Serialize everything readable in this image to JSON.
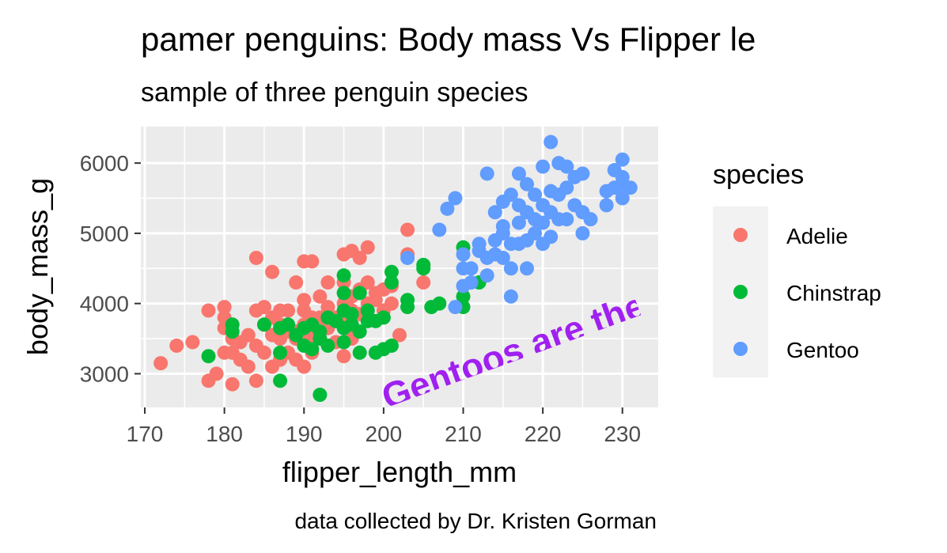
{
  "chart_data": {
    "type": "scatter",
    "title": "pamer penguins: Body mass Vs Flipper le",
    "subtitle": "sample of three penguin species",
    "xlabel": "flipper_length_mm",
    "ylabel": "body_mass_g",
    "caption": "data collected by Dr. Kristen Gorman",
    "annotation": "Gentoos are the",
    "xlim": [
      169.5,
      234.5
    ],
    "ylim": [
      2520,
      6520
    ],
    "x_ticks": [
      170,
      180,
      190,
      200,
      210,
      220,
      230
    ],
    "y_ticks": [
      3000,
      4000,
      5000,
      6000
    ],
    "legend_title": "species",
    "legend_position": "right",
    "grid": true,
    "series": [
      {
        "name": "Adelie",
        "color": "#F8766D",
        "points": [
          [
            172,
            3150
          ],
          [
            174,
            3400
          ],
          [
            176,
            3450
          ],
          [
            178,
            3900
          ],
          [
            178,
            2900
          ],
          [
            179,
            3000
          ],
          [
            180,
            3950
          ],
          [
            180,
            3800
          ],
          [
            180,
            3650
          ],
          [
            180,
            3300
          ],
          [
            181,
            2850
          ],
          [
            181,
            3500
          ],
          [
            181,
            3300
          ],
          [
            182,
            3200
          ],
          [
            182,
            3450
          ],
          [
            183,
            3550
          ],
          [
            183,
            3100
          ],
          [
            184,
            3900
          ],
          [
            184,
            4650
          ],
          [
            184,
            3400
          ],
          [
            184,
            2900
          ],
          [
            185,
            3950
          ],
          [
            185,
            3700
          ],
          [
            185,
            3300
          ],
          [
            186,
            3800
          ],
          [
            186,
            3550
          ],
          [
            186,
            4450
          ],
          [
            186,
            3100
          ],
          [
            187,
            3700
          ],
          [
            187,
            3900
          ],
          [
            187,
            3500
          ],
          [
            187,
            3200
          ],
          [
            188,
            3300
          ],
          [
            188,
            3600
          ],
          [
            188,
            3900
          ],
          [
            189,
            3500
          ],
          [
            189,
            4300
          ],
          [
            189,
            3200
          ],
          [
            189,
            3600
          ],
          [
            190,
            4600
          ],
          [
            190,
            4050
          ],
          [
            190,
            3450
          ],
          [
            190,
            3900
          ],
          [
            190,
            3700
          ],
          [
            190,
            3100
          ],
          [
            191,
            4600
          ],
          [
            191,
            3800
          ],
          [
            191,
            3550
          ],
          [
            191,
            3300
          ],
          [
            192,
            4100
          ],
          [
            192,
            3800
          ],
          [
            192,
            3500
          ],
          [
            193,
            4300
          ],
          [
            193,
            3950
          ],
          [
            193,
            3650
          ],
          [
            194,
            3800
          ],
          [
            194,
            3450
          ],
          [
            195,
            3250
          ],
          [
            195,
            4700
          ],
          [
            195,
            4300
          ],
          [
            195,
            4000
          ],
          [
            195,
            3700
          ],
          [
            196,
            4100
          ],
          [
            196,
            3900
          ],
          [
            196,
            3500
          ],
          [
            196,
            4750
          ],
          [
            197,
            4650
          ],
          [
            197,
            4200
          ],
          [
            197,
            3850
          ],
          [
            198,
            4800
          ],
          [
            198,
            4300
          ],
          [
            198,
            4000
          ],
          [
            199,
            4050
          ],
          [
            199,
            4150
          ],
          [
            200,
            3900
          ],
          [
            200,
            4200
          ],
          [
            201,
            4000
          ],
          [
            201,
            4250
          ],
          [
            202,
            3550
          ],
          [
            203,
            4700
          ],
          [
            203,
            5050
          ],
          [
            205,
            4300
          ]
        ]
      },
      {
        "name": "Chinstrap",
        "color": "#00BA38",
        "points": [
          [
            178,
            3250
          ],
          [
            181,
            3700
          ],
          [
            181,
            3600
          ],
          [
            185,
            3700
          ],
          [
            187,
            2900
          ],
          [
            187,
            3650
          ],
          [
            187,
            3300
          ],
          [
            188,
            3700
          ],
          [
            189,
            3550
          ],
          [
            190,
            3650
          ],
          [
            190,
            3400
          ],
          [
            191,
            3700
          ],
          [
            191,
            3350
          ],
          [
            192,
            3600
          ],
          [
            192,
            2700
          ],
          [
            192,
            3500
          ],
          [
            193,
            3800
          ],
          [
            193,
            3400
          ],
          [
            194,
            3750
          ],
          [
            195,
            4400
          ],
          [
            195,
            4150
          ],
          [
            195,
            3900
          ],
          [
            195,
            3650
          ],
          [
            195,
            3450
          ],
          [
            196,
            3700
          ],
          [
            196,
            3850
          ],
          [
            197,
            3600
          ],
          [
            197,
            4150
          ],
          [
            197,
            3300
          ],
          [
            198,
            3750
          ],
          [
            198,
            3900
          ],
          [
            199,
            3750
          ],
          [
            199,
            3300
          ],
          [
            200,
            3350
          ],
          [
            200,
            3800
          ],
          [
            201,
            4450
          ],
          [
            201,
            4300
          ],
          [
            201,
            3400
          ],
          [
            203,
            4050
          ],
          [
            203,
            3950
          ],
          [
            205,
            4550
          ],
          [
            205,
            4500
          ],
          [
            206,
            3950
          ],
          [
            207,
            4000
          ],
          [
            210,
            4100
          ],
          [
            210,
            3950
          ],
          [
            210,
            4800
          ],
          [
            212,
            4300
          ]
        ]
      },
      {
        "name": "Gentoo",
        "color": "#619CFF",
        "points": [
          [
            203,
            4650
          ],
          [
            207,
            5050
          ],
          [
            208,
            5350
          ],
          [
            209,
            5500
          ],
          [
            209,
            3950
          ],
          [
            210,
            4500
          ],
          [
            210,
            4250
          ],
          [
            210,
            4700
          ],
          [
            211,
            4500
          ],
          [
            211,
            4300
          ],
          [
            212,
            4750
          ],
          [
            212,
            4850
          ],
          [
            213,
            5850
          ],
          [
            213,
            4400
          ],
          [
            213,
            4650
          ],
          [
            214,
            4700
          ],
          [
            214,
            5300
          ],
          [
            214,
            4900
          ],
          [
            215,
            5100
          ],
          [
            215,
            4650
          ],
          [
            215,
            5450
          ],
          [
            215,
            5000
          ],
          [
            216,
            5550
          ],
          [
            216,
            4850
          ],
          [
            216,
            4100
          ],
          [
            216,
            4500
          ],
          [
            217,
            5850
          ],
          [
            217,
            5400
          ],
          [
            217,
            5150
          ],
          [
            217,
            4850
          ],
          [
            218,
            5700
          ],
          [
            218,
            5300
          ],
          [
            218,
            4900
          ],
          [
            218,
            4500
          ],
          [
            219,
            5550
          ],
          [
            219,
            5200
          ],
          [
            219,
            5000
          ],
          [
            220,
            5950
          ],
          [
            220,
            5400
          ],
          [
            220,
            5150
          ],
          [
            220,
            4850
          ],
          [
            221,
            6300
          ],
          [
            221,
            5300
          ],
          [
            221,
            5600
          ],
          [
            221,
            4950
          ],
          [
            222,
            6000
          ],
          [
            222,
            5550
          ],
          [
            222,
            5200
          ],
          [
            223,
            5950
          ],
          [
            223,
            5650
          ],
          [
            223,
            5200
          ],
          [
            224,
            5800
          ],
          [
            224,
            5400
          ],
          [
            225,
            5850
          ],
          [
            225,
            5300
          ],
          [
            225,
            5000
          ],
          [
            226,
            5200
          ],
          [
            228,
            5600
          ],
          [
            228,
            5400
          ],
          [
            229,
            5900
          ],
          [
            229,
            5650
          ],
          [
            230,
            5700
          ],
          [
            230,
            6050
          ],
          [
            230,
            5800
          ],
          [
            230,
            5500
          ],
          [
            231,
            5650
          ]
        ]
      }
    ]
  }
}
